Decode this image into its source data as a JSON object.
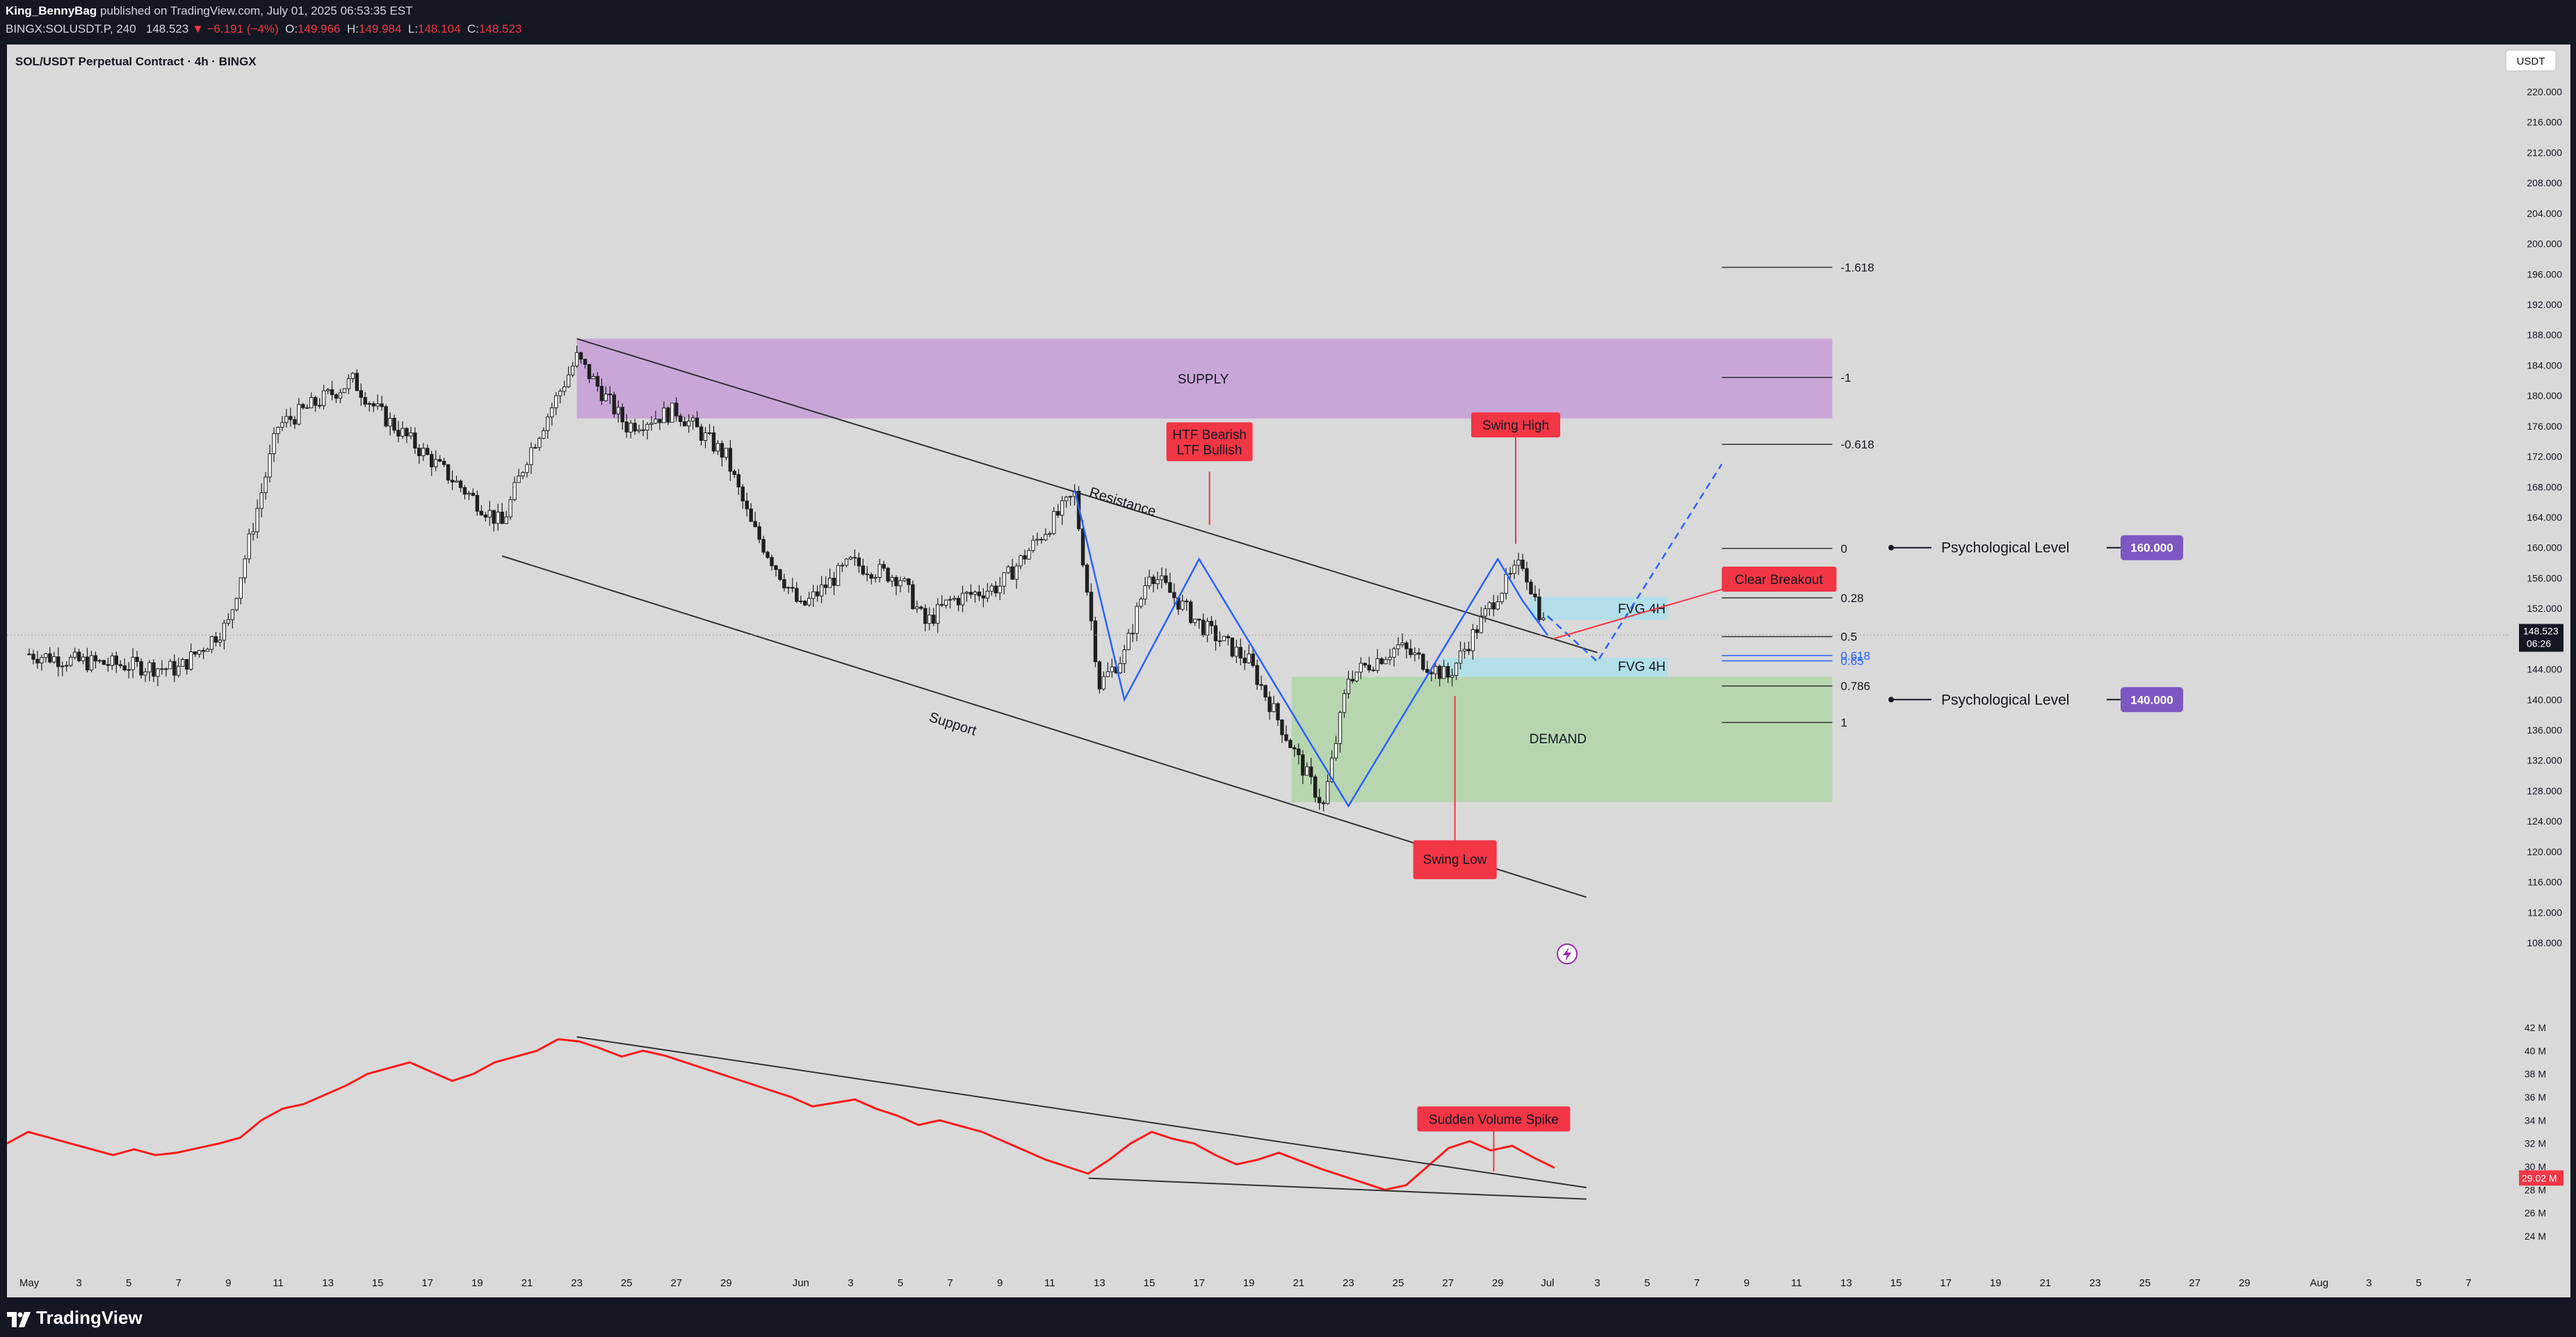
{
  "header": {
    "author": "King_BennyBag",
    "published": "published on TradingView.com, July 01, 2025 06:53:35 EST",
    "symbol": "BINGX:SOLUSDT.P, 240",
    "last": "148.523",
    "change": "▼ −6.191 (−4%)",
    "o_label": "O:",
    "o": "149.966",
    "h_label": "H:",
    "h": "149.984",
    "l_label": "L:",
    "l": "148.104",
    "c_label": "C:",
    "c": "148.523"
  },
  "chart_title": "SOL/USDT Perpetual Contract · 4h · BINGX",
  "currency_button": "USDT",
  "footer": {
    "brand": "TradingView"
  },
  "colors": {
    "background": "#d9d9d9",
    "candle": "#1f1f1f",
    "trendline": "#333333",
    "zigzag": "#2962ff",
    "supply": "#c9a6d8",
    "demand": "#b7d6b0",
    "fvg": "#b2dfe8",
    "label_red": "#f23645",
    "psych": "#7e57c2",
    "volume_line": "#ff1a1a"
  },
  "chart_data": [
    {
      "type": "line",
      "name_hint": "price-4h-candles",
      "y_axis_labels": [
        "220.000",
        "216.000",
        "212.000",
        "208.000",
        "204.000",
        "200.000",
        "196.000",
        "192.000",
        "188.000",
        "184.000",
        "180.000",
        "176.000",
        "172.000",
        "168.000",
        "164.000",
        "160.000",
        "156.000",
        "152.000",
        "148.000",
        "144.000",
        "140.000",
        "136.000",
        "132.000",
        "128.000",
        "124.000",
        "120.000",
        "116.000",
        "112.000",
        "108.000"
      ],
      "ylim": [
        106,
        222
      ],
      "current_price": "148.523",
      "countdown": "06:26",
      "x_labels": [
        "May",
        "3",
        "5",
        "7",
        "9",
        "11",
        "13",
        "15",
        "17",
        "19",
        "21",
        "23",
        "25",
        "27",
        "29",
        "Jun",
        "3",
        "5",
        "7",
        "9",
        "11",
        "13",
        "15",
        "17",
        "19",
        "21",
        "23",
        "25",
        "27",
        "29",
        "Jul",
        "3",
        "5",
        "7",
        "9",
        "11",
        "13",
        "15",
        "17",
        "19",
        "21",
        "23",
        "25",
        "27",
        "29",
        "Aug",
        "3",
        "5",
        "7"
      ],
      "x": [
        "May 1",
        "May 3",
        "May 5",
        "May 7",
        "May 9",
        "May 11",
        "May 13",
        "May 14",
        "May 15",
        "May 17",
        "May 19",
        "May 20",
        "May 21",
        "May 23",
        "May 25",
        "May 27",
        "May 29",
        "May 30",
        "Jun 1",
        "Jun 3",
        "Jun 5",
        "Jun 6",
        "Jun 7",
        "Jun 9",
        "Jun 11",
        "Jun 12",
        "Jun 13",
        "Jun 14",
        "Jun 15",
        "Jun 17",
        "Jun 19",
        "Jun 21",
        "Jun 22",
        "Jun 23",
        "Jun 25",
        "Jun 27",
        "Jun 29",
        "Jun 30",
        "Jul 1"
      ],
      "close": [
        146,
        145,
        144.5,
        144,
        150,
        176,
        180,
        182,
        178,
        172,
        166,
        163,
        172,
        185,
        176,
        178,
        172,
        163,
        152,
        158,
        156,
        150,
        153,
        155,
        163,
        167,
        142,
        146,
        157,
        150,
        145,
        132,
        126,
        143,
        147,
        143,
        154,
        158,
        148.5
      ],
      "fib_levels": [
        {
          "label": "-1.618",
          "price": 196.9
        },
        {
          "label": "-1",
          "price": 182.4
        },
        {
          "label": "-0.618",
          "price": 173.6
        },
        {
          "label": "0",
          "price": 159.9
        },
        {
          "label": "0.28",
          "price": 153.4
        },
        {
          "label": "0.5",
          "price": 148.3
        },
        {
          "label": "0.618",
          "price": 145.8
        },
        {
          "label": "0.65",
          "price": 145.1
        },
        {
          "label": "0.786",
          "price": 141.8
        },
        {
          "label": "1",
          "price": 137.0
        }
      ],
      "annotations": [
        "SUPPLY",
        "DEMAND",
        "FVG 4H",
        "FVG 4H",
        "Resistance",
        "Support",
        "HTF Bearish",
        "LTF Bullish",
        "Swing High",
        "Swing Low",
        "Clear Breakout",
        "Psychological Level",
        "Psychological Level"
      ],
      "zones": {
        "supply": [
          177,
          187.5
        ],
        "demand": [
          126.5,
          143
        ],
        "fvg_upper": [
          150.5,
          153.5
        ],
        "fvg_lower": [
          143,
          145.5
        ]
      },
      "psychological_levels": [
        "160.000",
        "140.000"
      ]
    },
    {
      "type": "line",
      "name_hint": "volume-indicator",
      "y_axis_labels": [
        "42 M",
        "40 M",
        "38 M",
        "36 M",
        "34 M",
        "32 M",
        "30 M",
        "28 M",
        "26 M",
        "24 M"
      ],
      "ylim": [
        23,
        43
      ],
      "current_value": "29.02 M",
      "values": [
        32,
        33,
        32.5,
        32,
        31.5,
        31,
        31.5,
        31,
        31.2,
        31.6,
        32,
        32.5,
        34,
        35,
        35.4,
        36.2,
        37,
        38,
        38.5,
        39,
        38.2,
        37.4,
        38,
        39,
        39.5,
        40,
        41,
        40.8,
        40.2,
        39.5,
        40,
        39.6,
        39,
        38.4,
        37.8,
        37.2,
        36.6,
        36,
        35.2,
        35.5,
        35.8,
        35,
        34.4,
        33.6,
        34,
        33.5,
        33,
        32.2,
        31.4,
        30.6,
        30,
        29.4,
        30.6,
        32,
        33,
        32.4,
        32,
        31,
        30.2,
        30.6,
        31.2,
        30.5,
        29.8,
        29.2,
        28.6,
        28,
        28.4,
        30,
        31.6,
        32.2,
        31.4,
        31.8,
        30.8,
        29.9
      ],
      "annotations": [
        "Sudden Volume Spike"
      ]
    }
  ]
}
